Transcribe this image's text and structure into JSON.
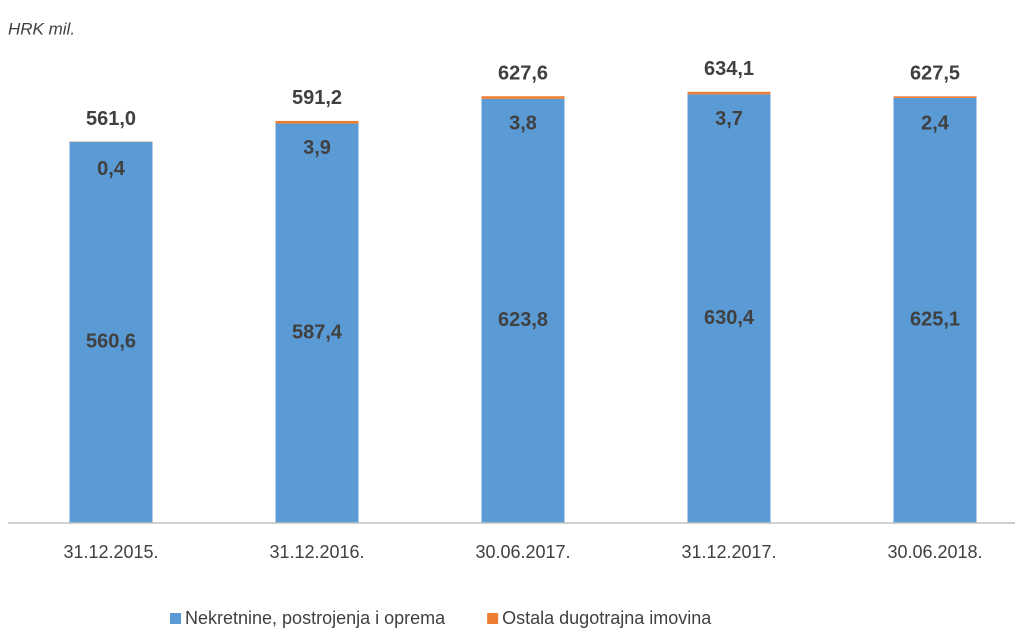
{
  "chart_data": {
    "type": "stacked_bar",
    "y_label": "HRK mil.",
    "categories": [
      "31.12.2015.",
      "31.12.2016.",
      "30.06.2017.",
      "31.12.2017.",
      "30.06.2018."
    ],
    "series": [
      {
        "name": "Nekretnine, postrojenja i oprema",
        "color": "#5b9bd5",
        "values": [
          560.6,
          587.4,
          623.8,
          630.4,
          625.1
        ],
        "value_labels": [
          "560,6",
          "587,4",
          "623,8",
          "630,4",
          "625,1"
        ]
      },
      {
        "name": "Ostala dugotrajna imovina",
        "color": "#ed7d31",
        "values": [
          0.4,
          3.9,
          3.8,
          3.7,
          2.4
        ],
        "value_labels": [
          "0,4",
          "3,9",
          "3,8",
          "3,7",
          "2,4"
        ]
      }
    ],
    "totals": {
      "values": [
        561.0,
        591.2,
        627.6,
        634.1,
        627.5
      ],
      "value_labels": [
        "561,0",
        "591,2",
        "627,6",
        "634,1",
        "627,5"
      ]
    },
    "ylim": [
      0,
      700
    ]
  }
}
